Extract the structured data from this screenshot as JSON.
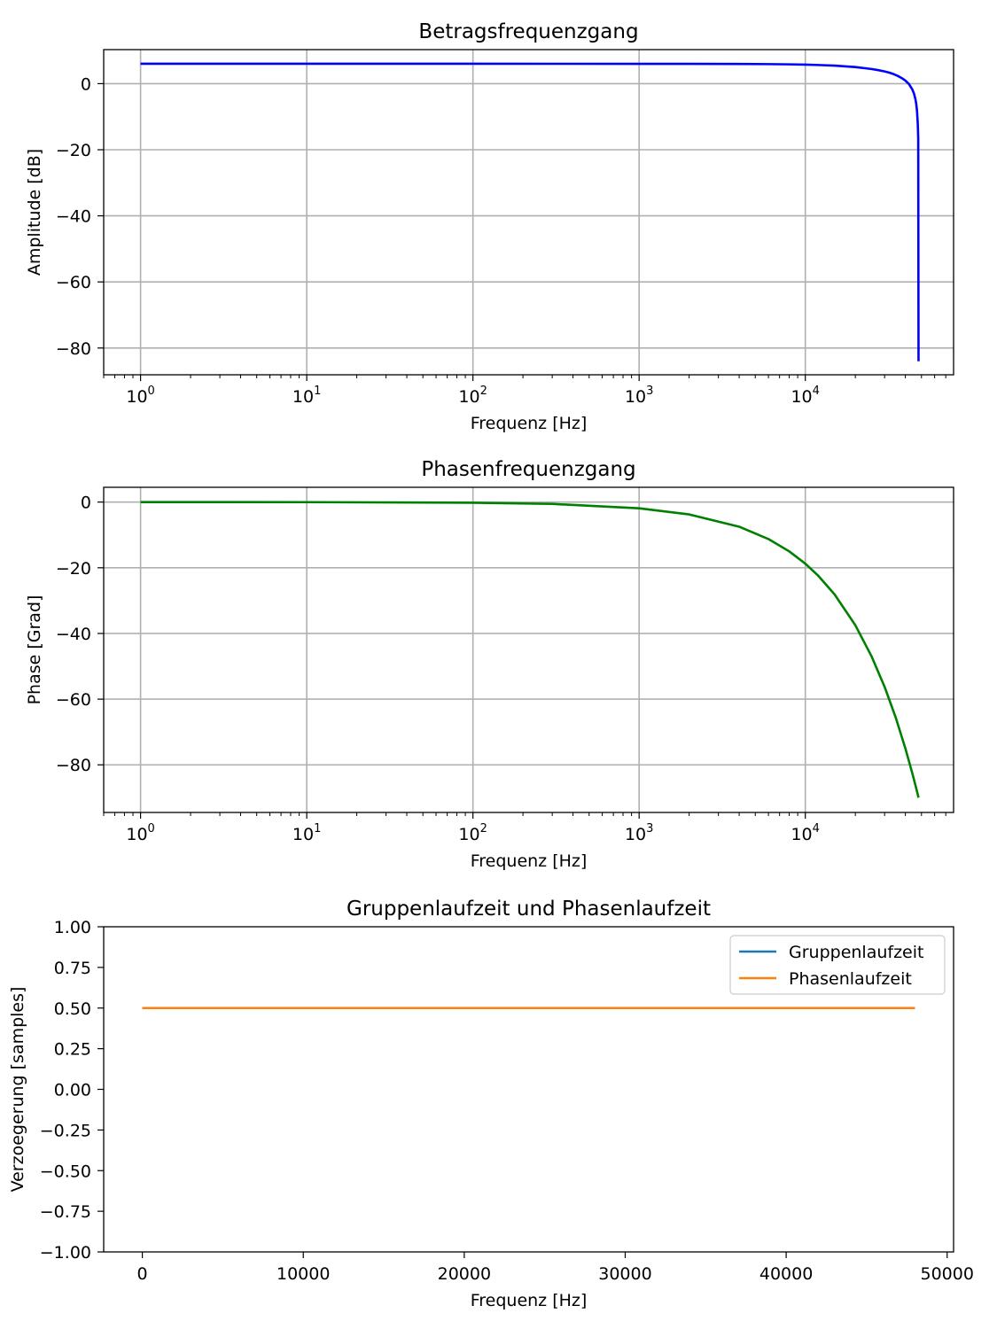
{
  "colors": {
    "amplitude": "#0000ff",
    "phase": "#008000",
    "gruppen": "#1f77b4",
    "phasenlauf": "#ff7f0e",
    "grid": "#b0b0b0"
  },
  "chart_data": [
    {
      "type": "line",
      "title": "Betragsfrequenzgang",
      "xlabel": "Frequenz [Hz]",
      "ylabel": "Amplitude [dB]",
      "xscale": "log",
      "xlim": [
        0.6,
        78000
      ],
      "ylim": [
        -88.1,
        10.3
      ],
      "xticks": [
        1,
        10,
        100,
        1000,
        10000
      ],
      "xtick_labels": [
        [
          "10",
          "0"
        ],
        [
          "10",
          "1"
        ],
        [
          "10",
          "2"
        ],
        [
          "10",
          "3"
        ],
        [
          "10",
          "4"
        ]
      ],
      "yticks": [
        0,
        -20,
        -40,
        -60,
        -80
      ],
      "ytick_labels": [
        "0",
        "−20",
        "−40",
        "−60",
        "−80"
      ],
      "grid": true,
      "series": [
        {
          "color": "amplitude",
          "x": [
            1,
            10,
            100,
            1000,
            2000,
            4000,
            6000,
            8000,
            10000,
            12000,
            15000,
            20000,
            25000,
            28000,
            30000,
            32000,
            34000,
            36000,
            38000,
            40000,
            42000,
            44000,
            45000,
            46000,
            46500,
            47000,
            47500,
            47800,
            48000
          ],
          "y": [
            6.02,
            6.02,
            6.02,
            6.0,
            5.99,
            5.96,
            5.91,
            5.84,
            5.75,
            5.64,
            5.45,
            5.02,
            4.43,
            4.01,
            3.69,
            3.32,
            2.88,
            2.34,
            1.7,
            0.93,
            -0.12,
            -1.72,
            -2.9,
            -4.75,
            -6.12,
            -8.21,
            -12.2,
            -16.6,
            -84.0
          ]
        }
      ]
    },
    {
      "type": "line",
      "title": "Phasenfrequenzgang",
      "xlabel": "Frequenz [Hz]",
      "ylabel": "Phase [Grad]",
      "xscale": "log",
      "xlim": [
        0.6,
        78000
      ],
      "ylim": [
        -94.5,
        4.5
      ],
      "xticks": [
        1,
        10,
        100,
        1000,
        10000
      ],
      "xtick_labels": [
        [
          "10",
          "0"
        ],
        [
          "10",
          "1"
        ],
        [
          "10",
          "2"
        ],
        [
          "10",
          "3"
        ],
        [
          "10",
          "4"
        ]
      ],
      "yticks": [
        0,
        -20,
        -40,
        -60,
        -80
      ],
      "ytick_labels": [
        "0",
        "−20",
        "−40",
        "−60",
        "−80"
      ],
      "grid": true,
      "series": [
        {
          "color": "phase",
          "x": [
            1,
            10,
            100,
            300,
            1000,
            2000,
            4000,
            6000,
            8000,
            10000,
            12000,
            15000,
            20000,
            25000,
            30000,
            35000,
            40000,
            44000,
            46000,
            47000,
            48000
          ],
          "y": [
            0.0,
            -0.02,
            -0.19,
            -0.56,
            -1.88,
            -3.75,
            -7.5,
            -11.25,
            -15.0,
            -18.75,
            -22.5,
            -28.1,
            -37.5,
            -46.9,
            -56.25,
            -65.6,
            -75.0,
            -82.5,
            -86.25,
            -88.1,
            -90.0
          ]
        }
      ]
    },
    {
      "type": "line",
      "title": "Gruppenlaufzeit und Phasenlaufzeit",
      "xlabel": "Frequenz [Hz]",
      "ylabel": "Verzoegerung [samples]",
      "xscale": "linear",
      "xlim": [
        -2400,
        50400
      ],
      "ylim": [
        -1.0,
        1.0
      ],
      "xticks": [
        0,
        10000,
        20000,
        30000,
        40000,
        50000
      ],
      "xtick_labels": [
        "0",
        "10000",
        "20000",
        "30000",
        "40000",
        "50000"
      ],
      "yticks": [
        1.0,
        0.75,
        0.5,
        0.25,
        0.0,
        -0.25,
        -0.5,
        -0.75,
        -1.0
      ],
      "ytick_labels": [
        "1.00",
        "0.75",
        "0.50",
        "0.25",
        "0.00",
        "−0.25",
        "−0.50",
        "−0.75",
        "−1.00"
      ],
      "grid": false,
      "legend": "top-right",
      "series": [
        {
          "name": "Gruppenlaufzeit",
          "color": "gruppen",
          "x": [
            1,
            48000
          ],
          "y": [
            0.5,
            0.5
          ]
        },
        {
          "name": "Phasenlaufzeit",
          "color": "phasenlauf",
          "x": [
            1,
            48000
          ],
          "y": [
            0.5,
            0.5
          ]
        }
      ]
    }
  ]
}
